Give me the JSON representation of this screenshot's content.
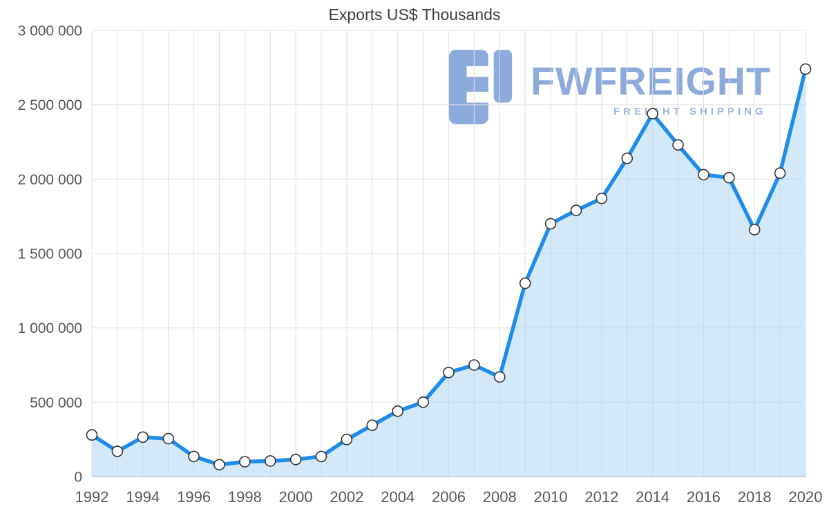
{
  "title": "Exports US$ Thousands",
  "watermark": {
    "brand": "FWFREIGHT",
    "tagline": "FREIGHT SHIPPING",
    "color": "#7e9fd9"
  },
  "colors": {
    "line": "#1f8ceb",
    "area_fill": "#a8d4f5",
    "marker_fill": "#ffffff",
    "marker_stroke": "#333333",
    "grid": "#e0e0e0",
    "axis": "#a8a8a8",
    "tick_text": "#565656",
    "title_text": "#3d3d3d"
  },
  "chart_data": {
    "type": "area",
    "title": "Exports US$ Thousands",
    "xlabel": "",
    "ylabel": "",
    "grid": true,
    "legend": "none",
    "xlim": [
      1992,
      2020
    ],
    "ylim": [
      0,
      3000000
    ],
    "x": [
      1992,
      1993,
      1994,
      1995,
      1996,
      1997,
      1998,
      1999,
      2000,
      2001,
      2002,
      2003,
      2004,
      2005,
      2006,
      2007,
      2008,
      2009,
      2010,
      2011,
      2012,
      2013,
      2014,
      2015,
      2016,
      2017,
      2018,
      2019,
      2020
    ],
    "series": [
      {
        "name": "Exports US$ Thousands",
        "values": [
          280000,
          170000,
          265000,
          255000,
          135000,
          80000,
          100000,
          105000,
          115000,
          135000,
          250000,
          345000,
          440000,
          500000,
          700000,
          750000,
          670000,
          1300000,
          1700000,
          1790000,
          1870000,
          2140000,
          2440000,
          2230000,
          2030000,
          2010000,
          1660000,
          2040000,
          2740000
        ]
      }
    ],
    "xtick_values": [
      1992,
      1994,
      1996,
      1998,
      2000,
      2002,
      2004,
      2006,
      2008,
      2010,
      2012,
      2014,
      2016,
      2018,
      2020
    ],
    "xtick_labels": [
      "1992",
      "1994",
      "1996",
      "1998",
      "2000",
      "2002",
      "2004",
      "2006",
      "2008",
      "2010",
      "2012",
      "2014",
      "2016",
      "2018",
      "2020"
    ],
    "ytick_values": [
      0,
      500000,
      1000000,
      1500000,
      2000000,
      2500000,
      3000000
    ],
    "ytick_labels": [
      "0",
      "500 000",
      "1 000 000",
      "1 500 000",
      "2 000 000",
      "2 500 000",
      "3 000 000"
    ]
  }
}
